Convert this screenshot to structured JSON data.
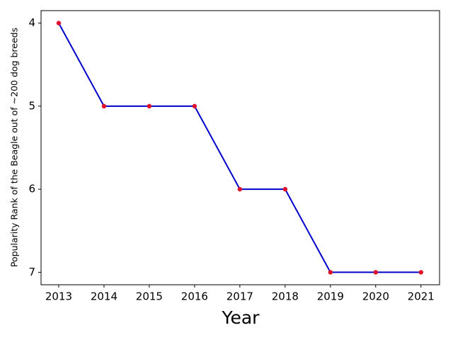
{
  "chart_data": {
    "type": "line",
    "xlabel": "Year",
    "ylabel": "Popularity Rank of the Beagle out of ~200 dog breeds",
    "x": [
      2013,
      2014,
      2015,
      2016,
      2017,
      2018,
      2019,
      2020,
      2021
    ],
    "values": [
      4,
      5,
      5,
      5,
      6,
      6,
      7,
      7,
      7
    ],
    "line_color": "#0000cc",
    "marker_color": "#e0102a",
    "xlim": [
      2012.61,
      2021.41
    ],
    "xticks": [
      2013,
      2014,
      2015,
      2016,
      2017,
      2018,
      2019,
      2020,
      2021
    ],
    "ylim": [
      7.15,
      3.85
    ],
    "yticks": [
      4,
      5,
      6,
      7
    ],
    "grid": false
  }
}
